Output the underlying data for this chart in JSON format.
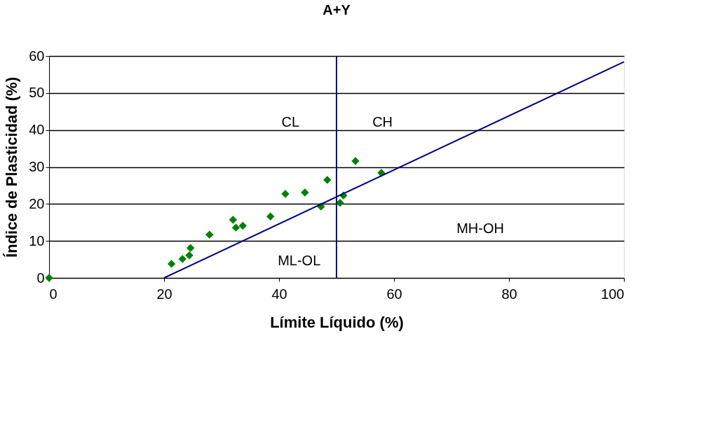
{
  "chart_data": {
    "type": "scatter",
    "title": "A+Y",
    "xlabel": "Límite Líquido (%)",
    "ylabel": "Índice de Plasticidad (%)",
    "xlim": [
      0,
      100
    ],
    "xticks": [
      0,
      20,
      40,
      60,
      80,
      100
    ],
    "ylim": [
      0,
      60
    ],
    "yticks": [
      0,
      10,
      20,
      30,
      40,
      50,
      60
    ],
    "grid": "y",
    "series": [
      {
        "color": "#008000",
        "marker": "diamond",
        "x": [
          0,
          21.3,
          23.2,
          24.4,
          24.6,
          27.9,
          32.0,
          32.5,
          33.7,
          38.5,
          41.1,
          44.5,
          48.4,
          47.3,
          50.6,
          51.2,
          53.3,
          57.8
        ],
        "values": [
          0,
          3.8,
          5.1,
          6.1,
          8.1,
          11.7,
          15.7,
          13.6,
          14.1,
          16.6,
          22.7,
          23.1,
          26.5,
          19.3,
          20.3,
          22.3,
          31.6,
          28.4
        ]
      },
      {
        "type": "line",
        "color": "#000080",
        "marker": "none",
        "line_style": "solid",
        "x": [
          20,
          100
        ],
        "values": [
          0,
          58.4
        ]
      }
    ],
    "ref_lines": [
      {
        "axis": "x",
        "value": 50,
        "color": "#000080"
      }
    ],
    "annotations": [
      "CL",
      "CH",
      "MH-OH",
      "ML-OL"
    ]
  }
}
